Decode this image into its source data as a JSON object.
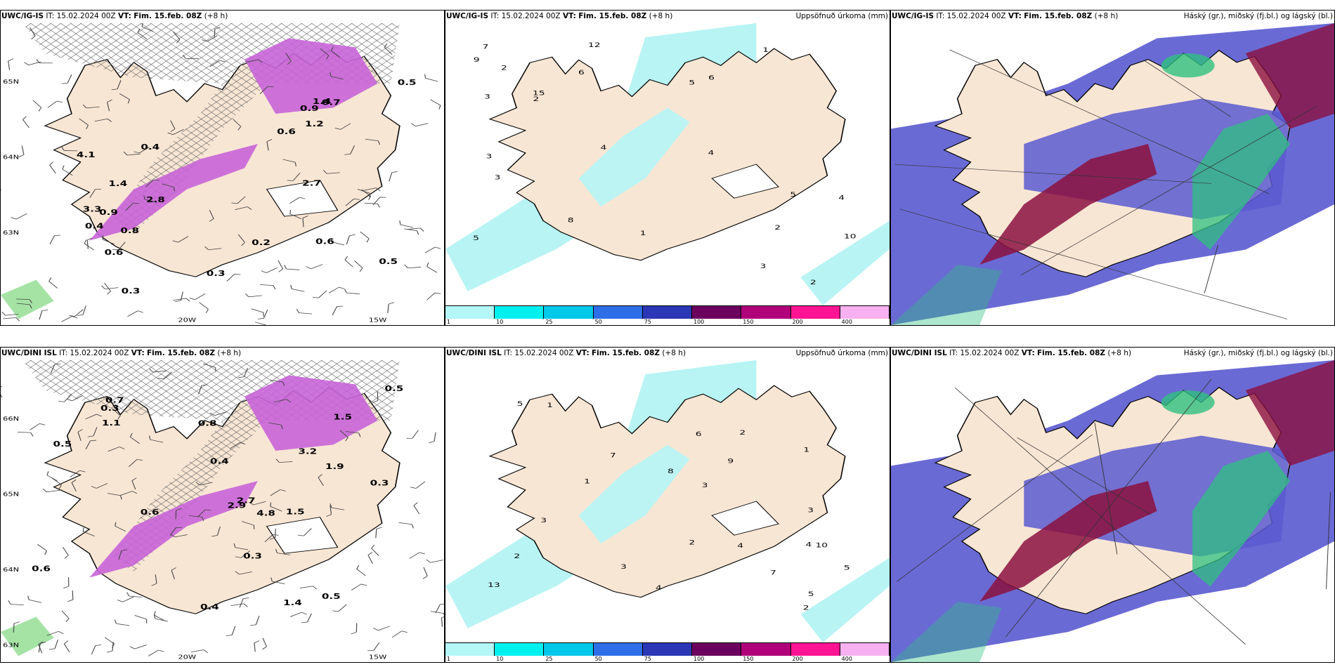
{
  "panels": [
    {
      "id": "tl",
      "model": "UWC/IG-IS",
      "it_label": "IT:",
      "it": "15.02.2024 00Z",
      "vt_label": "VT:",
      "vt": "Fim. 15.feb. 08Z",
      "lead": "(+8 h)",
      "right_title": "",
      "type": "precip-wind",
      "values": [
        "0.2",
        "0.4",
        "0.3",
        "0.5",
        "0.6",
        "0.4",
        "0.3",
        "0.6",
        "0.5",
        "2.7",
        "2.8",
        "3.3",
        "1.4",
        "0.9",
        "4.1",
        "0.6",
        "0.9",
        "1.4",
        "0.7",
        "0.8",
        "1.2"
      ],
      "axis": {
        "lat": [
          "65N",
          "64N",
          "63N"
        ],
        "lon": [
          "20W",
          "15W"
        ]
      }
    },
    {
      "id": "tm",
      "model": "UWC/IG-IS",
      "it_label": "IT:",
      "it": "15.02.2024 00Z",
      "vt_label": "VT:",
      "vt": "Fim. 15.feb. 08Z",
      "lead": "(+8 h)",
      "right_title": "Uppsöfnuð úrkoma (mm)",
      "type": "accum",
      "values": [
        "2",
        "3",
        "4",
        "5",
        "6",
        "7",
        "8",
        "10",
        "12",
        "15",
        "1",
        "2",
        "3",
        "4",
        "5",
        "6",
        "9",
        "3",
        "2",
        "1",
        "2",
        "3",
        "4",
        "5"
      ]
    },
    {
      "id": "tr",
      "model": "UWC/IG-IS",
      "it_label": "IT:",
      "it": "15.02.2024 00Z",
      "vt_label": "VT:",
      "vt": "Fim. 15.feb. 08Z",
      "lead": "(+8 h)",
      "right_title": "Háský (gr.), miðský (fj.bl.) og lágský (bl.)",
      "type": "cloud"
    },
    {
      "id": "bl",
      "model": "UWC/DINI ISL",
      "it_label": "IT:",
      "it": "15.02.2024 00Z",
      "vt_label": "VT:",
      "vt": "Fim. 15.feb. 08Z",
      "lead": "(+8 h)",
      "right_title": "",
      "type": "precip-wind",
      "values": [
        "0.3",
        "0.4",
        "0.6",
        "0.3",
        "0.5",
        "0.3",
        "0.4",
        "0.5",
        "1.5",
        "2.7",
        "1.4",
        "1.1",
        "2.9",
        "0.5",
        "1.5",
        "3.2",
        "0.7",
        "4.8",
        "0.8",
        "1.9",
        "0.6"
      ],
      "axis": {
        "lat": [
          "66N",
          "65N",
          "64N",
          "63N"
        ],
        "lon": [
          "20W",
          "15W"
        ]
      }
    },
    {
      "id": "bm",
      "model": "UWC/DINI ISL",
      "it_label": "IT:",
      "it": "15.02.2024 00Z",
      "vt_label": "VT:",
      "vt": "Fim. 15.feb. 08Z",
      "lead": "(+8 h)",
      "right_title": "Uppsöfnuð úrkoma (mm)",
      "type": "accum",
      "values": [
        "2",
        "3",
        "4",
        "5",
        "6",
        "7",
        "8",
        "9",
        "10",
        "13",
        "1",
        "2",
        "3",
        "4",
        "5",
        "3",
        "2",
        "1",
        "5",
        "4",
        "3",
        "2",
        "1",
        "7"
      ]
    },
    {
      "id": "br",
      "model": "UWC/DINI ISL",
      "it_label": "IT:",
      "it": "15.02.2024 00Z",
      "vt_label": "VT:",
      "vt": "Fim. 15.feb. 08Z",
      "lead": "(+8 h)",
      "right_title": "Háský (gr.), miðský (fj.bl.) og lágský (bl.)",
      "type": "cloud"
    }
  ],
  "legend": {
    "colors": [
      "#b3f7f7",
      "#00f0f0",
      "#00c8e8",
      "#2e6fe8",
      "#2b37b5",
      "#6b005e",
      "#b0007a",
      "#ff1493",
      "#f7b0f0"
    ],
    "ticks": [
      "1",
      "10",
      "25",
      "50",
      "75",
      "100",
      "150",
      "200",
      "400"
    ]
  },
  "colors": {
    "land": "#f8e6d4",
    "sea_accum": "#b8f4f4",
    "precip_pink": "#c864d8",
    "cloud_blue": "#5a5ad0",
    "cloud_red": "#8b1040",
    "cloud_green": "#30c080",
    "hatch": "#666666"
  }
}
